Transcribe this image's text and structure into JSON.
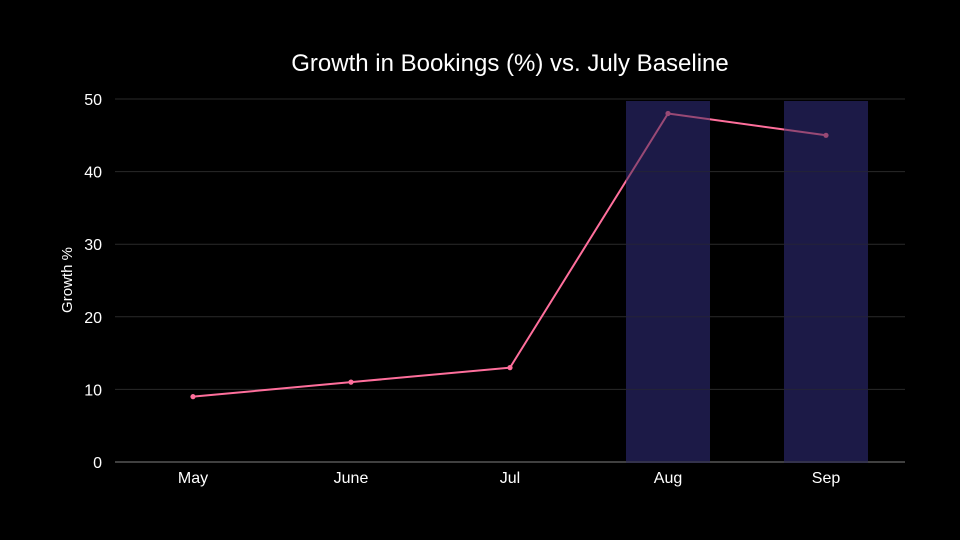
{
  "chart_data": {
    "type": "line",
    "title": "Growth in Bookings (%) vs. July Baseline",
    "xlabel": "",
    "ylabel": "Growth %",
    "categories": [
      "May",
      "June",
      "Jul",
      "Aug",
      "Sep"
    ],
    "series": [
      {
        "values": [
          9,
          11,
          13,
          48,
          45
        ],
        "color": "#ff6f9c"
      }
    ],
    "ylim": [
      0,
      50
    ],
    "yticks": [
      0,
      10,
      20,
      30,
      40,
      50
    ],
    "grid": true,
    "highlighted_categories": [
      "Aug",
      "Sep"
    ],
    "highlight_color": "#1c1a48",
    "background_color": "#000000",
    "grid_color": "#2a2a2a",
    "axis_color": "#555555"
  }
}
